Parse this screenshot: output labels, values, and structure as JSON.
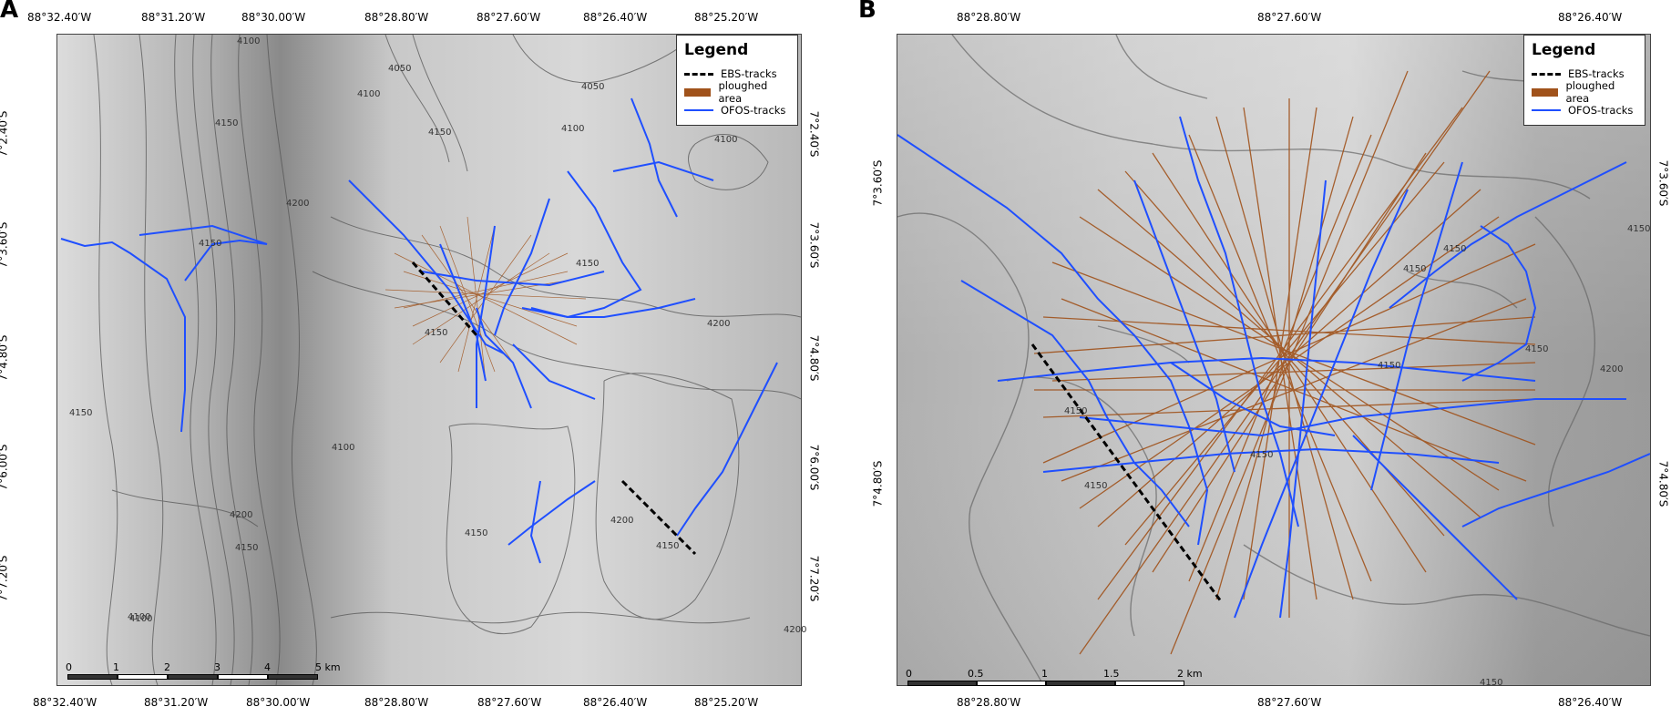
{
  "panels": {
    "a": {
      "letter": "A",
      "top_lon": [
        "88°32.40′W",
        "88°31.20′W",
        "88°30.00′W",
        "88°28.80′W",
        "88°27.60′W",
        "88°26.40′W",
        "88°25.20′W"
      ],
      "bottom_lon": [
        "88°32.40′W",
        "88°31.20′W",
        "88°30.00′W",
        "88°28.80′W",
        "88°27.60′W",
        "88°26.40′W",
        "88°25.20′W"
      ],
      "left_lat": [
        "7°2.40′S",
        "7°3.60′S",
        "7°4.80′S",
        "7°6.00′S",
        "7°7.20′S"
      ],
      "right_lat": [
        "7°2.40′S",
        "7°3.60′S",
        "7°4.80′S",
        "7°6.00′S",
        "7°7.20′S"
      ],
      "contours": [
        "4100",
        "4150",
        "4050",
        "4100",
        "4150",
        "4050",
        "4100",
        "4100",
        "4200",
        "4150",
        "4150",
        "4200",
        "4150",
        "4100",
        "4200",
        "4150",
        "4200",
        "4150",
        "4150",
        "4100",
        "4200",
        "4100",
        "4150"
      ],
      "scale": {
        "ticks": [
          "0",
          "1",
          "2",
          "3",
          "4"
        ],
        "last": "5 km"
      }
    },
    "b": {
      "letter": "B",
      "top_lon": [
        "88°28.80′W",
        "88°27.60′W",
        "88°26.40′W"
      ],
      "bottom_lon": [
        "88°28.80′W",
        "88°27.60′W",
        "88°26.40′W"
      ],
      "left_lat": [
        "7°3.60′S",
        "7°4.80′S"
      ],
      "right_lat": [
        "7°3.60′S",
        "7°4.80′S"
      ],
      "contours": [
        "4150",
        "4150",
        "4150",
        "4200",
        "4150",
        "4150",
        "4150",
        "4150",
        "4150",
        "4150"
      ],
      "scale": {
        "ticks": [
          "0",
          "0.5",
          "1",
          "1.5"
        ],
        "last": "2 km"
      }
    }
  },
  "legend": {
    "title": "Legend",
    "items": [
      {
        "label": "EBS-tracks",
        "symbol": "dashed-black-line"
      },
      {
        "label": "ploughed area",
        "symbol": "brown-fill"
      },
      {
        "label": "OFOS-tracks",
        "symbol": "blue-line"
      }
    ]
  },
  "colors": {
    "ofos": "#1f4fff",
    "plough": "#a0521b",
    "ebs": "#000000",
    "contour": "#555555"
  }
}
